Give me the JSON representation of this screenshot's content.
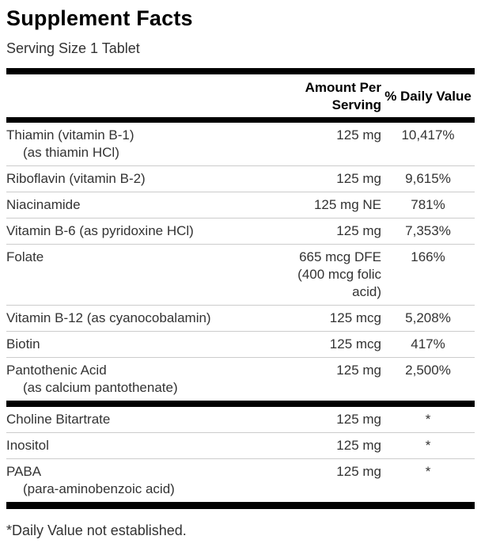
{
  "label": {
    "title": "Supplement Facts",
    "serving_size": "Serving Size 1 Tablet",
    "footnote": "*Daily Value not established."
  },
  "table": {
    "header": {
      "amount": "Amount Per Serving",
      "daily_value": "% Daily Value"
    },
    "rows": [
      {
        "name": "Thiamin (vitamin B-1)",
        "sub": "(as thiamin HCl)",
        "amount": "125 mg",
        "daily_value": "10,417%"
      },
      {
        "name": "Riboflavin (vitamin B-2)",
        "amount": "125 mg",
        "daily_value": "9,615%"
      },
      {
        "name": "Niacinamide",
        "amount": "125 mg NE",
        "daily_value": "781%"
      },
      {
        "name": "Vitamin B-6 (as pyridoxine HCl)",
        "amount": "125 mg",
        "daily_value": "7,353%"
      },
      {
        "name": "Folate",
        "amount": "665 mcg DFE (400 mcg folic acid)",
        "daily_value": "166%"
      },
      {
        "name": "Vitamin B-12 (as cyanocobalamin)",
        "amount": "125 mcg",
        "daily_value": "5,208%"
      },
      {
        "name": "Biotin",
        "amount": "125 mcg",
        "daily_value": "417%"
      },
      {
        "name": "Pantothenic Acid",
        "sub": "(as calcium pantothenate)",
        "amount": "125 mg",
        "daily_value": "2,500%"
      },
      {
        "name": "Choline Bitartrate",
        "amount": "125 mg",
        "daily_value": "*"
      },
      {
        "name": "Inositol",
        "amount": "125 mg",
        "daily_value": "*"
      },
      {
        "name": "PABA",
        "sub": "(para-aminobenzoic acid)",
        "amount": "125 mg",
        "daily_value": "*"
      }
    ]
  },
  "colors": {
    "background": "#ffffff",
    "heading_text": "#000000",
    "body_text": "#333333",
    "rule_thick": "#000000",
    "rule_thin": "#cccccc"
  }
}
